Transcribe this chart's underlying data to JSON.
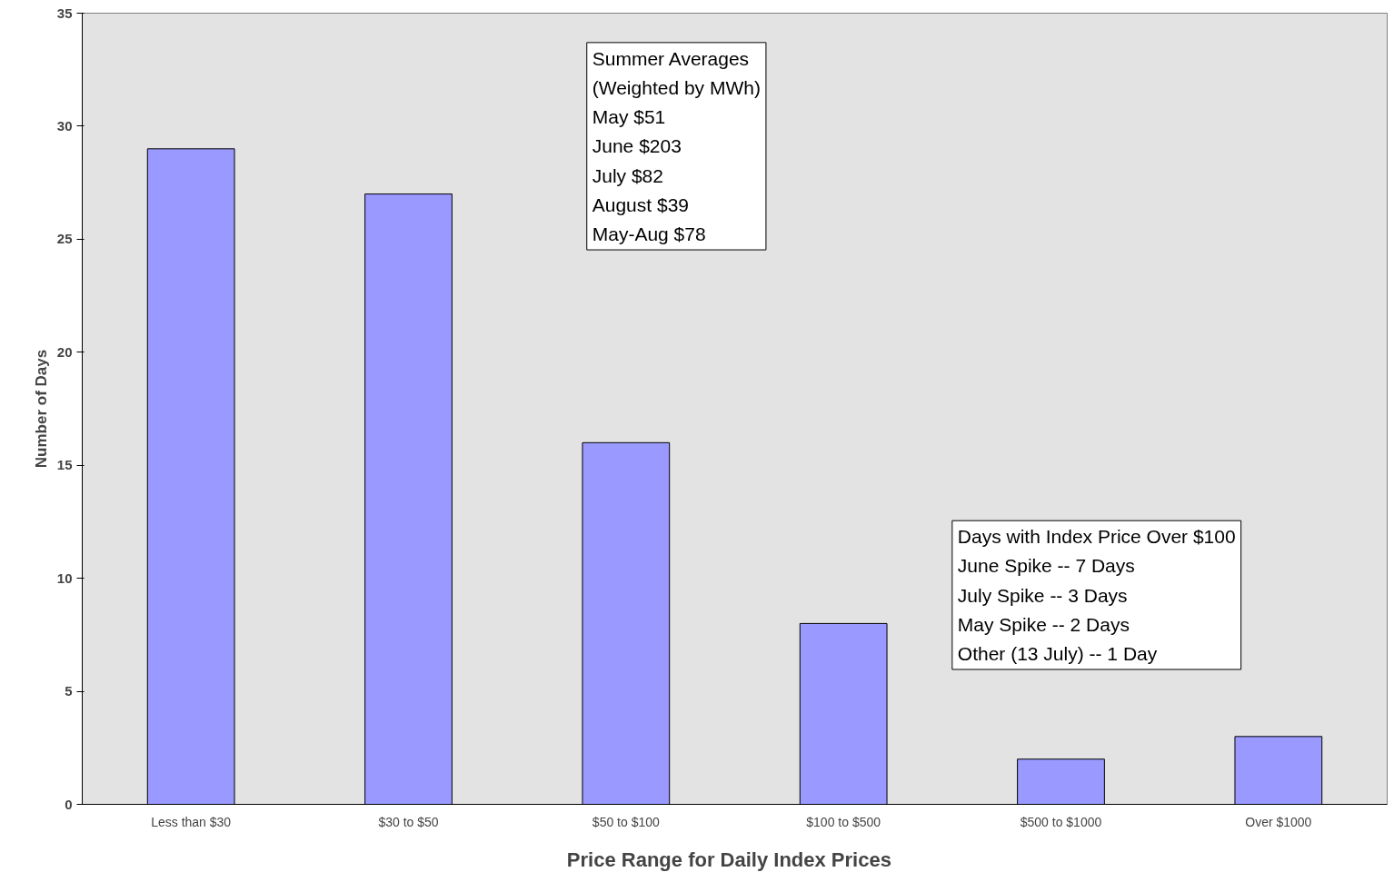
{
  "chart_data": {
    "type": "bar",
    "xlabel": "Price Range for  Daily Index  Prices",
    "ylabel": "Number of Days",
    "categories": [
      "Less than $30",
      "$30 to $50",
      "$50 to $100",
      "$100 to $500",
      "$500 to $1000",
      "Over $1000"
    ],
    "values": [
      29,
      27,
      16,
      8,
      2,
      3
    ],
    "color": "#9999ff",
    "ylim": [
      0,
      35
    ],
    "yticks": [
      0,
      5,
      10,
      15,
      20,
      25,
      30,
      35
    ],
    "grid": false,
    "annotations": [
      "Summer Averages\n(Weighted by MWh)\nMay $51\nJune $203\nJuly $82\nAugust $39\nMay-Aug $78",
      "Days with Index Price Over $100\nJune Spike -- 7 Days\nJuly Spike -- 3 Days\nMay Spike -- 2 Days\nOther (13 July) -- 1 Day"
    ]
  }
}
